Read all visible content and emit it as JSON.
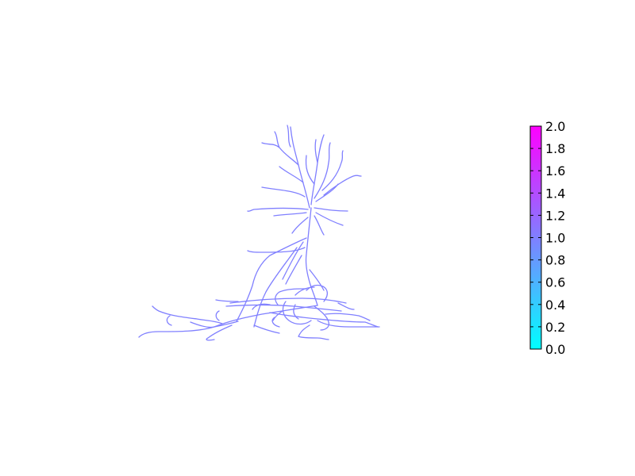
{
  "figure": {
    "neuron": {
      "value": 1.0,
      "color": "#8080ff"
    },
    "colorbar": {
      "colormap": "cool",
      "color_min": "#00ffff",
      "color_max": "#ff00ff",
      "range": [
        0.0,
        2.0
      ],
      "ticks": [
        "0.0",
        "0.2",
        "0.4",
        "0.6",
        "0.8",
        "1.0",
        "1.2",
        "1.4",
        "1.6",
        "1.8",
        "2.0"
      ]
    }
  }
}
